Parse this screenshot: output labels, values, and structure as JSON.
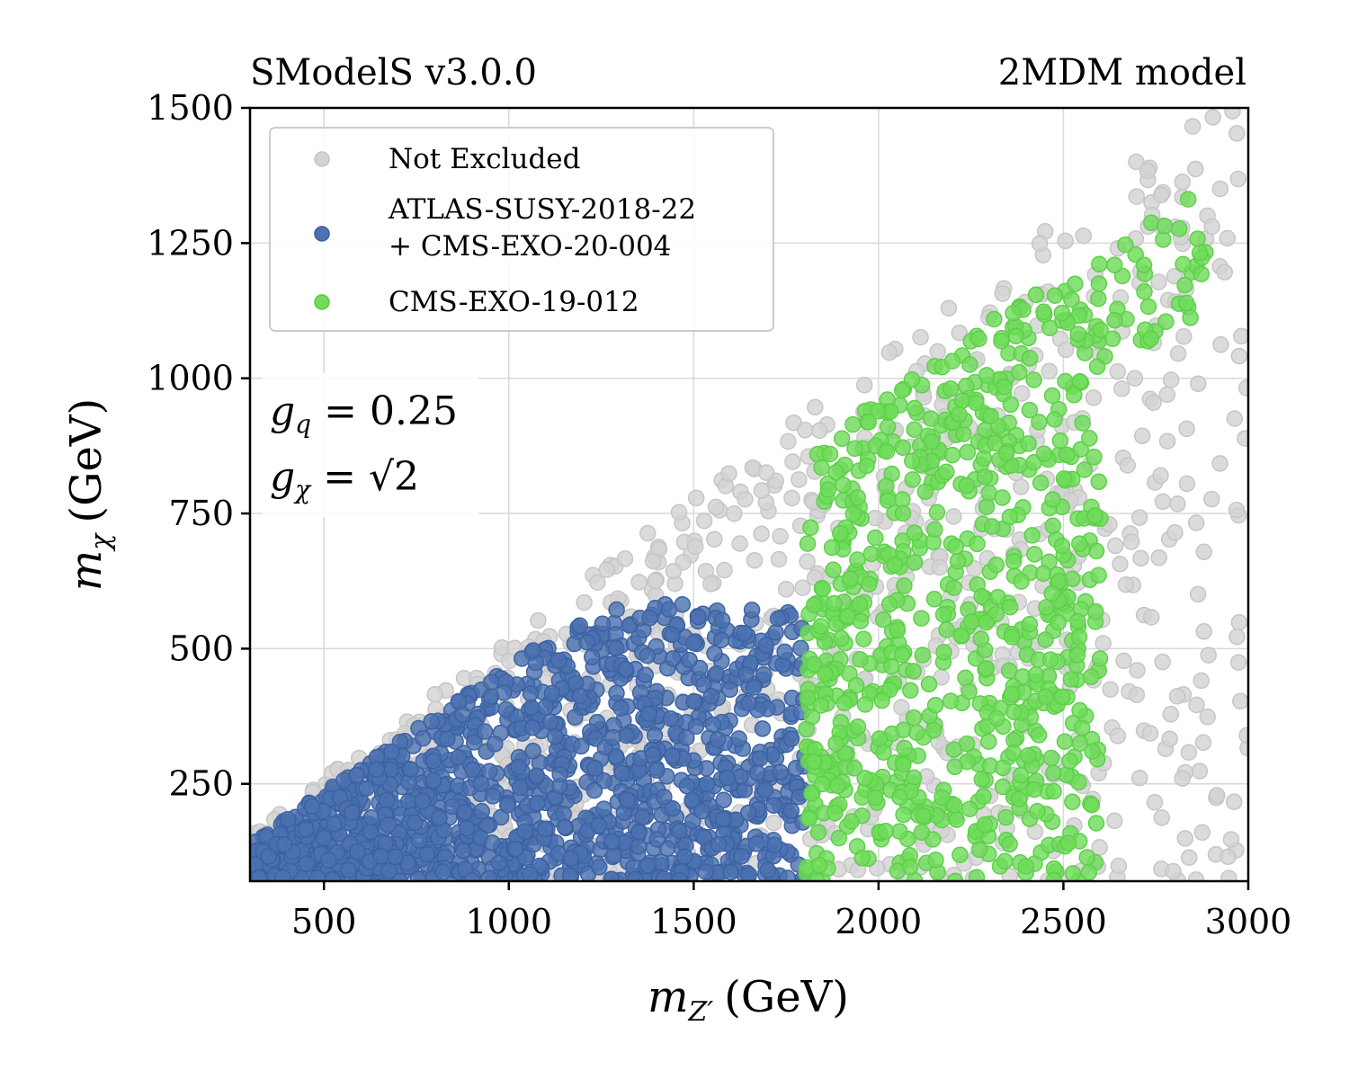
{
  "chart_data": {
    "type": "scatter",
    "title_left": "SModelS v3.0.0",
    "title_right": "2MDM model",
    "xlabel": {
      "sym": "m",
      "sub": "Z′",
      "unit": "(GeV)"
    },
    "ylabel": {
      "sym": "m",
      "sub": "χ",
      "unit": "(GeV)"
    },
    "xlim": [
      300,
      3000
    ],
    "ylim": [
      70,
      1500
    ],
    "xticks": [
      500,
      1000,
      1500,
      2000,
      2500,
      3000
    ],
    "yticks": [
      250,
      500,
      750,
      1000,
      1250,
      1500
    ],
    "grid": true,
    "legend_position": "top-left",
    "annotation": {
      "line1": {
        "sym": "g",
        "sub": "q",
        "rhs": "= 0.25"
      },
      "line2": {
        "sym": "g",
        "sub": "χ",
        "rhs": "= √2"
      }
    },
    "series": [
      {
        "name": "Not Excluded",
        "color": "#d3d3d3",
        "region": {
          "x": [
            300,
            3000
          ],
          "y_min": 70,
          "y_max_rule": "min(1500, 0.5*x)"
        },
        "n_points": 1000
      },
      {
        "name": "ATLAS-SUSY-2018-22",
        "name_line2": "+ CMS-EXO-20-004",
        "color": "#4c72b0",
        "region": {
          "x": [
            300,
            1800
          ],
          "y_min": 70,
          "y_max_rule": "min(0.47*x, 580)"
        },
        "n_points": 1300
      },
      {
        "name": "CMS-EXO-19-012",
        "color": "#6fdc5a",
        "region": {
          "x": [
            1800,
            2900
          ],
          "y_min": 70,
          "y_max_rule": "min(0.48*x, 1400)"
        },
        "n_points": 900
      }
    ]
  }
}
